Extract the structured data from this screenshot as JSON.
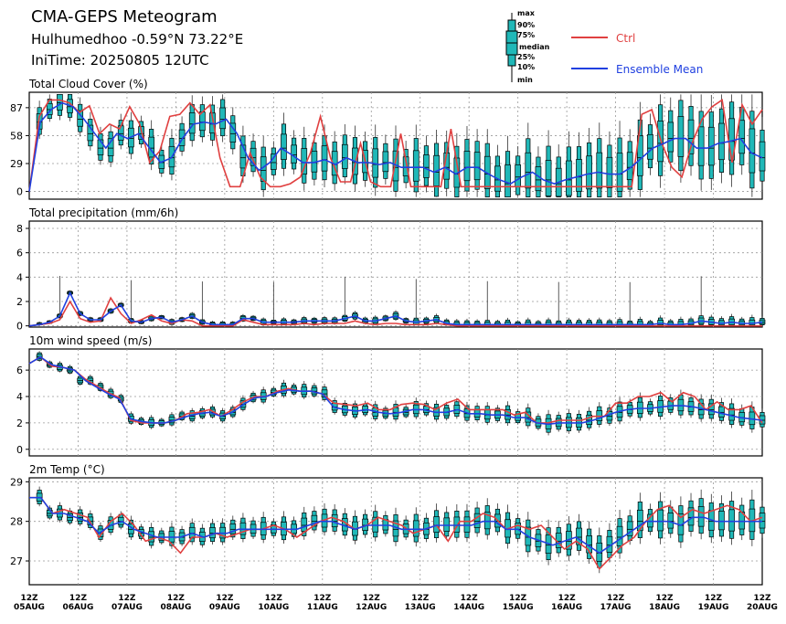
{
  "header": {
    "title": "CMA-GEPS Meteogram",
    "location": "Hulhumedhoo -0.59°N 73.22°E",
    "init_time": "IniTime: 20250805 12UTC"
  },
  "legend": {
    "box_labels": [
      "max",
      "90%",
      "75%",
      "median",
      "25%",
      "10%",
      "min"
    ],
    "ctrl_label": "Ctrl",
    "mean_label": "Ensemble Mean",
    "ctrl_color": "#e04040",
    "mean_color": "#2040e0",
    "box_color": "#20b8b8"
  },
  "x_axis": {
    "ticks": [
      {
        "hour": "12Z",
        "date": "05AUG"
      },
      {
        "hour": "12Z",
        "date": "06AUG"
      },
      {
        "hour": "12Z",
        "date": "07AUG"
      },
      {
        "hour": "12Z",
        "date": "08AUG"
      },
      {
        "hour": "12Z",
        "date": "09AUG"
      },
      {
        "hour": "12Z",
        "date": "10AUG"
      },
      {
        "hour": "12Z",
        "date": "11AUG"
      },
      {
        "hour": "12Z",
        "date": "12AUG"
      },
      {
        "hour": "12Z",
        "date": "13AUG"
      },
      {
        "hour": "12Z",
        "date": "14AUG"
      },
      {
        "hour": "12Z",
        "date": "15AUG"
      },
      {
        "hour": "12Z",
        "date": "16AUG"
      },
      {
        "hour": "12Z",
        "date": "17AUG"
      },
      {
        "hour": "12Z",
        "date": "18AUG"
      },
      {
        "hour": "12Z",
        "date": "19AUG"
      },
      {
        "hour": "12Z",
        "date": "20AUG"
      }
    ]
  },
  "chart_data": [
    {
      "type": "box",
      "title": "Total Cloud Cover (%)",
      "yticks": [
        0,
        29,
        58,
        87
      ],
      "ylim": [
        -8,
        103
      ],
      "ctrl": [
        0,
        78,
        95,
        95,
        92,
        82,
        89,
        60,
        70,
        65,
        88,
        70,
        30,
        42,
        78,
        80,
        92,
        80,
        90,
        35,
        5,
        5,
        40,
        15,
        5,
        5,
        8,
        15,
        40,
        78,
        35,
        10,
        10,
        50,
        10,
        5,
        5,
        60,
        5,
        5,
        5,
        5,
        65,
        5,
        5,
        5,
        5,
        5,
        5,
        5,
        5,
        5,
        5,
        5,
        5,
        5,
        5,
        5,
        5,
        5,
        5,
        80,
        85,
        50,
        25,
        15,
        50,
        75,
        88,
        95,
        30,
        90,
        70,
        85
      ],
      "mean": [
        0,
        72,
        85,
        92,
        88,
        75,
        60,
        45,
        60,
        55,
        60,
        45,
        30,
        35,
        55,
        70,
        72,
        70,
        75,
        60,
        35,
        22,
        30,
        45,
        38,
        30,
        30,
        33,
        28,
        35,
        30,
        30,
        28,
        30,
        25,
        25,
        25,
        20,
        25,
        18,
        25,
        25,
        18,
        12,
        8,
        15,
        20,
        12,
        8,
        12,
        15,
        18,
        20,
        18,
        18,
        25,
        35,
        45,
        50,
        55,
        55,
        45,
        45,
        50,
        52,
        55,
        40,
        35
      ],
      "box_count": 73
    },
    {
      "type": "box",
      "title": "Total precipitation (mm/6h)",
      "yticks": [
        0,
        2,
        4,
        6,
        8
      ],
      "ylim": [
        -0.1,
        8.6
      ],
      "ctrl": [
        0,
        0.1,
        0.2,
        0.5,
        2.0,
        0.6,
        0.3,
        0.4,
        2.3,
        1.0,
        0.2,
        0.5,
        0.9,
        0.4,
        0.2,
        0.5,
        0.4,
        0,
        0,
        0,
        0,
        0.5,
        0.3,
        0.1,
        0.1,
        0.1,
        0.1,
        0.2,
        0.1,
        0.2,
        0.2,
        0.2,
        0.4,
        0.2,
        0.1,
        0.2,
        0.2,
        0.1,
        0.1,
        0.1,
        0.2,
        0.1,
        0,
        0,
        0,
        0,
        0,
        0,
        0,
        0,
        0,
        0,
        0,
        0,
        0,
        0,
        0,
        0,
        0,
        0,
        0,
        0,
        0,
        0,
        0,
        0,
        0,
        0,
        0,
        0,
        0,
        0,
        0
      ],
      "mean": [
        0,
        0.1,
        0.3,
        0.8,
        2.7,
        1.0,
        0.5,
        0.5,
        1.2,
        1.7,
        0.4,
        0.3,
        0.6,
        0.7,
        0.3,
        0.5,
        0.8,
        0.3,
        0.1,
        0.1,
        0.1,
        0.6,
        0.6,
        0.3,
        0.3,
        0.3,
        0.3,
        0.4,
        0.4,
        0.4,
        0.4,
        0.6,
        0.8,
        0.4,
        0.4,
        0.6,
        0.8,
        0.4,
        0.3,
        0.4,
        0.5,
        0.2,
        0.1,
        0.1,
        0.1,
        0.1,
        0.1,
        0.1,
        0.1,
        0.1,
        0.1,
        0.1,
        0.1,
        0.1,
        0.1,
        0.1,
        0.1,
        0.1,
        0.1,
        0.1,
        0.1,
        0.1,
        0.2,
        0.1,
        0.1,
        0.2,
        0.4,
        0.3,
        0.2,
        0.3,
        0.2,
        0.2,
        0.3
      ],
      "box_count": 73
    },
    {
      "type": "box",
      "title": "10m wind speed (m/s)",
      "yticks": [
        0,
        2,
        4,
        6
      ],
      "ylim": [
        -0.5,
        7.6
      ],
      "ctrl": [
        6.5,
        7.0,
        6.3,
        6.2,
        6.0,
        5.3,
        4.8,
        4.3,
        3.9,
        2.2,
        2.0,
        2.0,
        2.0,
        2.2,
        2.7,
        2.8,
        3.0,
        2.5,
        3.0,
        3.6,
        4.0,
        4.0,
        4.4,
        4.6,
        4.4,
        4.4,
        4.2,
        3.5,
        3.4,
        3.3,
        3.5,
        3.0,
        3.0,
        3.4,
        3.5,
        3.4,
        3.0,
        3.5,
        3.8,
        3.0,
        3.0,
        3.0,
        3.0,
        2.6,
        2.8,
        2.0,
        2.0,
        2.2,
        2.2,
        2.2,
        2.5,
        2.5,
        3.5,
        3.5,
        4.0,
        4.0,
        4.3,
        3.6,
        4.3,
        4.0,
        3.0,
        3.6,
        3.0,
        3.0,
        3.3,
        2.0
      ],
      "mean": [
        6.5,
        7.0,
        6.4,
        6.2,
        6.0,
        5.2,
        4.7,
        4.2,
        3.8,
        2.3,
        2.1,
        2.0,
        2.0,
        2.2,
        2.5,
        2.7,
        2.8,
        2.5,
        2.8,
        3.4,
        3.9,
        4.0,
        4.3,
        4.5,
        4.4,
        4.4,
        4.2,
        3.2,
        3.0,
        2.9,
        3.0,
        2.8,
        2.7,
        2.8,
        3.0,
        3.0,
        2.8,
        2.8,
        3.0,
        2.7,
        2.7,
        2.6,
        2.6,
        2.4,
        2.4,
        2.0,
        1.9,
        2.0,
        2.0,
        2.0,
        2.2,
        2.5,
        2.8,
        3.0,
        3.1,
        3.1,
        3.2,
        3.3,
        3.3,
        3.2,
        3.0,
        2.8,
        2.6,
        2.4,
        2.3,
        2.2
      ],
      "box_count": 73
    },
    {
      "type": "box",
      "title": "2m Temp (°C)",
      "yticks": [
        27,
        28,
        29
      ],
      "ylim": [
        26.4,
        29.1
      ],
      "ctrl": [
        28.6,
        28.6,
        28.2,
        28.3,
        28.2,
        28.1,
        27.6,
        28.0,
        28.2,
        27.9,
        27.5,
        27.6,
        27.5,
        27.2,
        27.6,
        27.6,
        27.7,
        27.6,
        27.7,
        27.8,
        27.8,
        27.9,
        27.8,
        27.6,
        27.8,
        28.0,
        28.1,
        28.0,
        27.8,
        27.9,
        28.1,
        28.0,
        27.9,
        27.7,
        27.8,
        27.9,
        27.5,
        28.0,
        28.0,
        28.2,
        28.1,
        27.8,
        27.9,
        27.8,
        27.9,
        27.6,
        27.3,
        27.5,
        27.3,
        26.8,
        27.1,
        27.4,
        27.6,
        28.0,
        28.3,
        28.4,
        28.1,
        28.3,
        28.2,
        28.3,
        28.4,
        28.3,
        28.0,
        28.1
      ],
      "mean": [
        28.6,
        28.6,
        28.2,
        28.2,
        28.1,
        28.0,
        27.7,
        27.9,
        28.0,
        27.8,
        27.7,
        27.6,
        27.6,
        27.6,
        27.7,
        27.6,
        27.7,
        27.7,
        27.8,
        27.8,
        27.8,
        27.8,
        27.8,
        27.8,
        27.9,
        28.0,
        28.0,
        27.9,
        27.8,
        27.9,
        27.9,
        27.9,
        27.8,
        27.8,
        27.8,
        27.9,
        27.9,
        27.9,
        27.9,
        28.0,
        28.0,
        27.8,
        27.8,
        27.6,
        27.5,
        27.4,
        27.5,
        27.6,
        27.4,
        27.2,
        27.4,
        27.6,
        27.8,
        28.0,
        28.0,
        28.0,
        27.9,
        28.1,
        28.1,
        28.0,
        28.0,
        28.0,
        28.0,
        28.0
      ],
      "box_count": 73
    }
  ]
}
